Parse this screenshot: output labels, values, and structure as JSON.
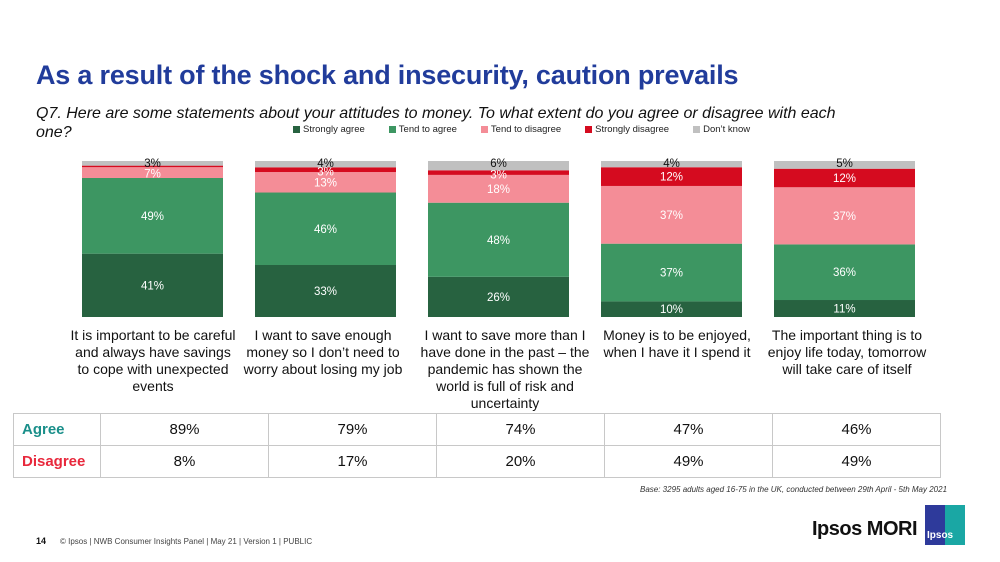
{
  "title": "As a result of the shock and insecurity, caution prevails",
  "question": "Q7. Here are some statements about your attitudes to money. To what extent do you agree or disagree with each one?",
  "colors": {
    "title": "#213c9b",
    "strongly_agree": "#276240",
    "tend_to_agree": "#3d9662",
    "tend_to_disagree": "#f48d97",
    "strongly_disagree": "#d50b1f",
    "dont_know": "#c0c0c0",
    "agree_label": "#1a8f8a",
    "disagree_label": "#e8283c"
  },
  "chart_data": {
    "type": "bar",
    "stacked": true,
    "percent_stacked": true,
    "title": "",
    "xlabel": "",
    "ylabel": "",
    "ylim": [
      0,
      100
    ],
    "legend_position": "top",
    "grid": false,
    "categories": [
      "It is important to be careful and always have savings to cope with unexpected events",
      "I want to save enough money so I don't need to worry about losing my job",
      "I want to save more than I have done in the past – the pandemic has shown the world is full of risk and uncertainty",
      "Money is to be enjoyed, when I have it I spend it",
      "The important thing is to enjoy life today, tomorrow will take care of itself"
    ],
    "series": [
      {
        "name": "Strongly agree",
        "color": "#276240",
        "values": [
          41,
          33,
          26,
          10,
          11
        ]
      },
      {
        "name": "Tend to agree",
        "color": "#3d9662",
        "values": [
          49,
          46,
          48,
          37,
          36
        ]
      },
      {
        "name": "Tend to disagree",
        "color": "#f48d97",
        "values": [
          7,
          13,
          18,
          37,
          37
        ]
      },
      {
        "name": "Strongly disagree",
        "color": "#d50b1f",
        "values": [
          1,
          3,
          3,
          12,
          12
        ]
      },
      {
        "name": "Don't know",
        "color": "#c0c0c0",
        "values": [
          3,
          4,
          6,
          4,
          5
        ]
      }
    ],
    "data_labels": [
      [
        "41%",
        "49%",
        "7%",
        "",
        "3%"
      ],
      [
        "33%",
        "46%",
        "13%",
        "3%",
        "4%"
      ],
      [
        "26%",
        "48%",
        "18%",
        "3%",
        "6%"
      ],
      [
        "10%",
        "37%",
        "37%",
        "12%",
        "4%"
      ],
      [
        "11%",
        "36%",
        "37%",
        "12%",
        "5%"
      ]
    ]
  },
  "legend": [
    {
      "label": "Strongly agree",
      "color": "#276240"
    },
    {
      "label": "Tend to agree",
      "color": "#3d9662"
    },
    {
      "label": "Tend to disagree",
      "color": "#f48d97"
    },
    {
      "label": "Strongly disagree",
      "color": "#d50b1f"
    },
    {
      "label": "Don’t know",
      "color": "#c0c0c0"
    }
  ],
  "category_labels": [
    "It is important to be careful and always have savings to cope with unexpected events",
    "I want to save enough money so I don’t need to worry about losing my job",
    "I want to save more than I have done in the past – the pandemic has shown the world is full of risk and uncertainty",
    "Money is to be enjoyed, when I have it I spend it",
    "The important thing is to enjoy life today, tomorrow will take care of itself"
  ],
  "summary": {
    "agree_label": "Agree",
    "disagree_label": "Disagree",
    "agree": [
      "89%",
      "79%",
      "74%",
      "47%",
      "46%"
    ],
    "disagree": [
      "8%",
      "17%",
      "20%",
      "49%",
      "49%"
    ]
  },
  "base_note": "Base: 3295 adults aged 16-75 in the UK, conducted between 29th April - 5th May 2021",
  "footer": {
    "page_number": "14",
    "text": "© Ipsos | NWB Consumer Insights Panel | May 21 | Version 1 | PUBLIC"
  },
  "logo": {
    "text": "Ipsos MORI",
    "badge": "Ipsos"
  }
}
